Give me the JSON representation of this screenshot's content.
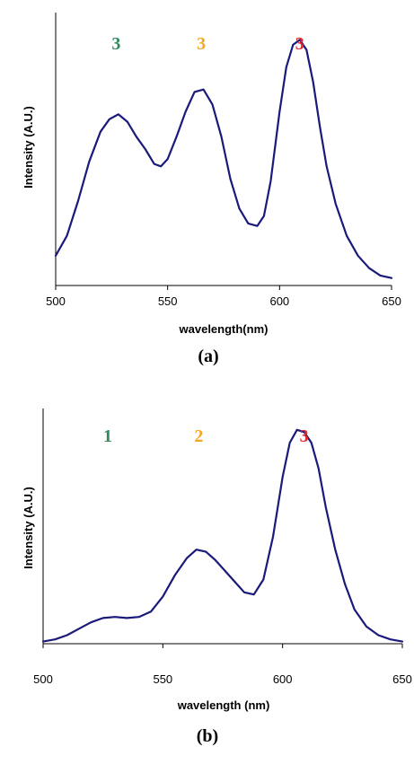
{
  "chart_data": [
    {
      "type": "line",
      "panel_label": "(a)",
      "xlabel": "wavelength(nm)",
      "ylabel": "Intensity (A.U.)",
      "xlim": [
        500,
        650
      ],
      "ylim": [
        0,
        1.1
      ],
      "x_ticks": [
        "500",
        "550",
        "600",
        "650"
      ],
      "y_ticks": [],
      "grid": false,
      "line_color": "#1a1a7a",
      "peak_labels": [
        {
          "text": "3",
          "x": 527,
          "color": "#2e8b57"
        },
        {
          "text": "3",
          "x": 565,
          "color": "#f5a623"
        },
        {
          "text": "3",
          "x": 609,
          "color": "#e8262b"
        }
      ],
      "series": [
        {
          "x": [
            500,
            505,
            510,
            515,
            520,
            524,
            528,
            532,
            536,
            540,
            544,
            547,
            550,
            554,
            558,
            562,
            566,
            570,
            574,
            578,
            582,
            586,
            590,
            593,
            596,
            600,
            603,
            606,
            609,
            612,
            615,
            618,
            621,
            625,
            630,
            635,
            640,
            645,
            650
          ],
          "y": [
            0.12,
            0.2,
            0.34,
            0.5,
            0.62,
            0.67,
            0.69,
            0.66,
            0.6,
            0.55,
            0.49,
            0.48,
            0.51,
            0.6,
            0.7,
            0.78,
            0.79,
            0.73,
            0.6,
            0.43,
            0.31,
            0.25,
            0.24,
            0.28,
            0.42,
            0.7,
            0.88,
            0.97,
            0.99,
            0.95,
            0.82,
            0.64,
            0.48,
            0.33,
            0.2,
            0.12,
            0.07,
            0.04,
            0.03
          ]
        }
      ]
    },
    {
      "type": "line",
      "panel_label": "(b)",
      "xlabel": "wavelength (nm)",
      "ylabel": "Intensity (A.U.)",
      "xlim": [
        500,
        650
      ],
      "ylim": [
        0,
        1.1
      ],
      "x_ticks": [
        "500",
        "550",
        "600",
        "650"
      ],
      "y_ticks": [],
      "grid": false,
      "line_color": "#1a1a7a",
      "peak_labels": [
        {
          "text": "1",
          "x": 527,
          "color": "#2e8b57"
        },
        {
          "text": "2",
          "x": 565,
          "color": "#f5a623"
        },
        {
          "text": "3",
          "x": 609,
          "color": "#e8262b"
        }
      ],
      "series": [
        {
          "x": [
            500,
            505,
            510,
            515,
            520,
            525,
            530,
            535,
            540,
            545,
            550,
            555,
            560,
            564,
            568,
            572,
            576,
            580,
            584,
            588,
            592,
            596,
            600,
            603,
            606,
            609,
            612,
            615,
            618,
            622,
            626,
            630,
            635,
            640,
            645,
            650
          ],
          "y": [
            0.01,
            0.02,
            0.04,
            0.07,
            0.1,
            0.12,
            0.125,
            0.12,
            0.125,
            0.15,
            0.22,
            0.32,
            0.4,
            0.44,
            0.43,
            0.39,
            0.34,
            0.29,
            0.24,
            0.23,
            0.3,
            0.5,
            0.78,
            0.94,
            1.0,
            0.99,
            0.94,
            0.82,
            0.64,
            0.44,
            0.28,
            0.16,
            0.08,
            0.04,
            0.02,
            0.01
          ]
        }
      ]
    }
  ]
}
